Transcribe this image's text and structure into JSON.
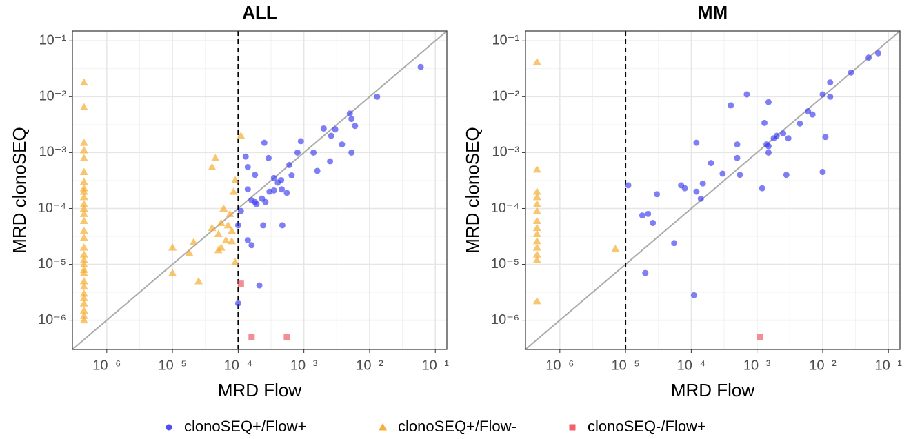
{
  "chart_data": [
    {
      "type": "scatter",
      "title": "ALL",
      "xlabel": "MRD Flow",
      "ylabel": "MRD clonoSEQ",
      "log_x": true,
      "log_y": true,
      "grid": true,
      "xlim": [
        3e-07,
        0.15
      ],
      "ylim": [
        3e-07,
        0.15
      ],
      "xticks": [
        {
          "value": 1e-06,
          "label": "10⁻⁶"
        },
        {
          "value": 1e-05,
          "label": "10⁻⁵"
        },
        {
          "value": 0.0001,
          "label": "10⁻⁴"
        },
        {
          "value": 0.001,
          "label": "10⁻³"
        },
        {
          "value": 0.01,
          "label": "10⁻²"
        },
        {
          "value": 0.1,
          "label": "10⁻¹"
        }
      ],
      "yticks": [
        {
          "value": 1e-06,
          "label": "10⁻⁶"
        },
        {
          "value": 1e-05,
          "label": "10⁻⁵"
        },
        {
          "value": 0.0001,
          "label": "10⁻⁴"
        },
        {
          "value": 0.001,
          "label": "10⁻³"
        },
        {
          "value": 0.01,
          "label": "10⁻²"
        },
        {
          "value": 0.1,
          "label": "10⁻¹"
        }
      ],
      "vline": 0.0001,
      "series": [
        {
          "marker": "circle",
          "color": "#3b3bf0",
          "x": [
            0.06,
            0.013,
            0.005,
            0.0053,
            0.006,
            0.002,
            0.003,
            0.0026,
            0.0009,
            0.0038,
            0.0008,
            0.0014,
            0.0053,
            0.0025,
            0.00025,
            0.00013,
            0.00029,
            0.00014,
            0.0006,
            0.00018,
            0.00065,
            0.0016,
            0.00035,
            0.0004,
            0.00045,
            0.00014,
            0.0003,
            0.00035,
            0.00016,
            0.00019,
            0.00018,
            0.00023,
            0.00026,
            0.00046,
            0.00055,
            0.00011,
            0.0001,
            0.00024,
            0.00047,
            0.00014,
            0.00016,
            0.00021,
            0.0001
          ],
          "values": [
            0.034,
            0.01,
            0.005,
            0.004,
            0.003,
            0.0027,
            0.0026,
            0.002,
            0.0016,
            0.0014,
            0.001,
            0.001,
            0.001,
            0.0007,
            0.0015,
            0.00085,
            0.0008,
            0.00055,
            0.0006,
            0.0004,
            0.00039,
            0.00047,
            0.00035,
            0.00029,
            0.00032,
            0.00022,
            0.0002,
            0.00021,
            0.00014,
            0.00012,
            0.00013,
            0.00015,
            0.00013,
            0.00022,
            0.00019,
            9e-05,
            5e-05,
            5e-05,
            5e-05,
            2.7e-05,
            2.2e-05,
            4.2e-06,
            2e-06
          ]
        },
        {
          "marker": "triangle",
          "color": "#f5a623",
          "x": [
            0.00011,
            4.5e-05,
            4e-05,
            9e-05,
            8.5e-05,
            6e-05,
            7.5e-05,
            4e-05,
            5.5e-05,
            7e-05,
            8e-05,
            5e-05,
            6.5e-05,
            8e-05,
            2.1e-05,
            5.5e-05,
            5e-05,
            1e-05,
            1.8e-05,
            9e-05,
            1e-05,
            2.5e-05,
            4.5e-07,
            4.5e-07,
            4.5e-07,
            4.5e-07,
            4.5e-07,
            4.5e-07,
            4.5e-07,
            4.5e-07,
            4.5e-07,
            4.5e-07,
            4.5e-07,
            4.5e-07,
            4.5e-07,
            4.5e-07,
            4.5e-07,
            4.5e-07,
            4.5e-07,
            4.5e-07,
            4.5e-07,
            4.5e-07,
            4.5e-07,
            4.5e-07,
            4.5e-07,
            4.5e-07,
            4.5e-07,
            4.5e-07,
            4.5e-07,
            4.5e-07,
            4.5e-07,
            4.5e-07
          ],
          "values": [
            0.002,
            0.0008,
            0.00055,
            0.00032,
            0.0002,
            0.0001,
            8e-05,
            4.5e-05,
            5.5e-05,
            5e-05,
            4e-05,
            3.5e-05,
            2.7e-05,
            2.6e-05,
            2.5e-05,
            2e-05,
            1.8e-05,
            2e-05,
            1.6e-05,
            1.1e-05,
            7e-06,
            5e-06,
            0.018,
            0.0065,
            0.0015,
            0.0011,
            0.0008,
            0.00045,
            0.0003,
            0.00023,
            0.0002,
            0.00016,
            0.00012,
            0.0001,
            8e-05,
            6e-05,
            4e-05,
            3e-05,
            2e-05,
            1.5e-05,
            1.2e-05,
            1e-05,
            8e-06,
            7e-06,
            5e-06,
            4e-06,
            3e-06,
            2.5e-06,
            2e-06,
            1.5e-06,
            1.2e-06,
            1e-06
          ]
        },
        {
          "marker": "square",
          "color": "#f0505a",
          "x": [
            0.00011,
            0.00016,
            0.00055
          ],
          "values": [
            4.5e-06,
            5e-07,
            5e-07
          ]
        }
      ]
    },
    {
      "type": "scatter",
      "title": "MM",
      "xlabel": "MRD Flow",
      "ylabel": "MRD clonoSEQ",
      "log_x": true,
      "log_y": true,
      "grid": true,
      "xlim": [
        3e-07,
        0.15
      ],
      "ylim": [
        3e-07,
        0.15
      ],
      "xticks": [
        {
          "value": 1e-06,
          "label": "10⁻⁶"
        },
        {
          "value": 1e-05,
          "label": "10⁻⁵"
        },
        {
          "value": 0.0001,
          "label": "10⁻⁴"
        },
        {
          "value": 0.001,
          "label": "10⁻³"
        },
        {
          "value": 0.01,
          "label": "10⁻²"
        },
        {
          "value": 0.1,
          "label": "10⁻¹"
        }
      ],
      "yticks": [
        {
          "value": 1e-06,
          "label": "10⁻⁶"
        },
        {
          "value": 1e-05,
          "label": "10⁻⁵"
        },
        {
          "value": 0.0001,
          "label": "10⁻⁴"
        },
        {
          "value": 0.001,
          "label": "10⁻³"
        },
        {
          "value": 0.01,
          "label": "10⁻²"
        },
        {
          "value": 0.1,
          "label": "10⁻¹"
        }
      ],
      "vline": 1e-05,
      "series": [
        {
          "marker": "circle",
          "color": "#3b3bf0",
          "x": [
            0.07,
            0.05,
            0.027,
            0.013,
            0.01,
            0.013,
            0.0007,
            0.0004,
            0.0015,
            0.006,
            0.007,
            0.0045,
            0.0013,
            0.0025,
            0.002,
            0.0018,
            0.003,
            0.011,
            0.0014,
            0.0015,
            0.0015,
            0.00012,
            0.0005,
            0.0005,
            0.0002,
            0.0003,
            0.00055,
            0.0028,
            0.01,
            0.00015,
            0.00012,
            8e-05,
            7e-05,
            0.0012,
            3e-05,
            0.00014,
            1.1e-05,
            1.8e-05,
            2.2e-05,
            2.6e-05,
            5.5e-05,
            2e-05,
            0.00011
          ],
          "values": [
            0.06,
            0.05,
            0.027,
            0.018,
            0.011,
            0.01,
            0.011,
            0.007,
            0.008,
            0.0055,
            0.0048,
            0.0033,
            0.0034,
            0.0022,
            0.002,
            0.0018,
            0.0018,
            0.0019,
            0.0014,
            0.0013,
            0.001,
            0.0015,
            0.0014,
            0.0008,
            0.00065,
            0.00042,
            0.0004,
            0.0004,
            0.00045,
            0.00028,
            0.0002,
            0.00023,
            0.00026,
            0.00023,
            0.00018,
            0.00015,
            0.00026,
            7.5e-05,
            8e-05,
            5.5e-05,
            2.4e-05,
            7e-06,
            2.8e-06
          ]
        },
        {
          "marker": "triangle",
          "color": "#f5a623",
          "x": [
            7e-06,
            4.5e-07,
            4.5e-07,
            4.5e-07,
            4.5e-07,
            4.5e-07,
            4.5e-07,
            4.5e-07,
            4.5e-07,
            4.5e-07,
            4.5e-07,
            4.5e-07,
            4.5e-07,
            4.5e-07,
            4.5e-07
          ],
          "values": [
            1.9e-05,
            0.042,
            0.0005,
            0.0002,
            0.00016,
            0.00012,
            9e-05,
            6e-05,
            4.5e-05,
            3.5e-05,
            2.6e-05,
            2e-05,
            1.5e-05,
            1.2e-05,
            2.2e-06
          ]
        },
        {
          "marker": "square",
          "color": "#f0505a",
          "x": [
            0.0011
          ],
          "values": [
            5e-07
          ]
        }
      ]
    }
  ],
  "legend": {
    "position": "bottom",
    "entries": [
      {
        "name": "clonoSEQ+/Flow+",
        "color": "#3b3bf0",
        "marker": "circle"
      },
      {
        "name": "clonoSEQ+/Flow-",
        "color": "#f5a623",
        "marker": "triangle"
      },
      {
        "name": "clonoSEQ-/Flow+",
        "color": "#f0505a",
        "marker": "square"
      }
    ]
  }
}
